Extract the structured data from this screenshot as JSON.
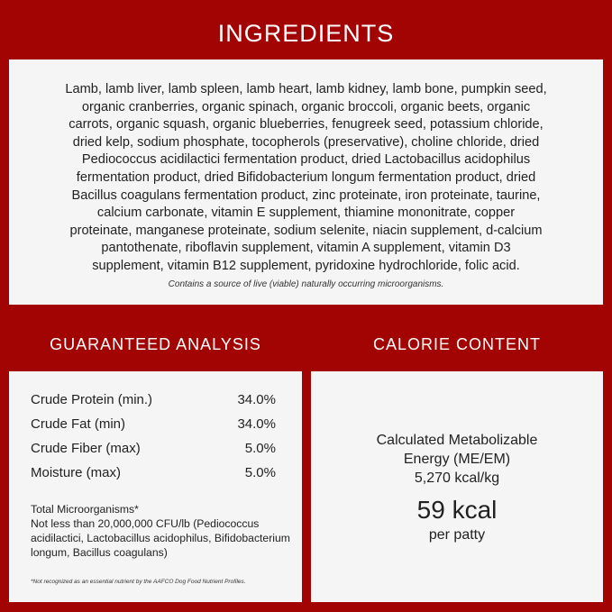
{
  "ingredients": {
    "title": "INGREDIENTS",
    "lines": [
      "Lamb, lamb liver, lamb spleen, lamb heart, lamb kidney, lamb bone, pumpkin seed,",
      "organic cranberries, organic spinach, organic broccoli, organic beets, organic",
      "carrots, organic squash, organic blueberries, fenugreek seed, potassium chloride,",
      "dried kelp, sodium phosphate, tocopherols (preservative), choline chloride, dried",
      "Pediococcus acidilactici fermentation product, dried Lactobacillus acidophilus",
      "fermentation product, dried Bifidobacterium longum fermentation product, dried",
      "Bacillus coagulans fermentation product, zinc proteinate, iron proteinate, taurine,",
      "calcium carbonate, vitamin E supplement, thiamine mononitrate, copper",
      "proteinate, manganese proteinate, sodium selenite, niacin supplement, d-calcium",
      "pantothenate, riboflavin supplement, vitamin A supplement, vitamin D3",
      "supplement, vitamin B12 supplement, pyridoxine hydrochloride, folic acid."
    ],
    "note": "Contains a source of live (viable) naturally occurring microorganisms."
  },
  "analysis": {
    "title": "GUARANTEED ANALYSIS",
    "rows": [
      {
        "label": "Crude Protein (min.)",
        "value": "34.0%"
      },
      {
        "label": "Crude Fat (min)",
        "value": "34.0%"
      },
      {
        "label": "Crude Fiber (max)",
        "value": "5.0%"
      },
      {
        "label": "Moisture (max)",
        "value": "5.0%"
      }
    ],
    "micro_title": "Total Microorganisms*",
    "micro_text": "Not less than 20,000,000 CFU/lb (Pediococcus acidilactici, Lactobacillus acidophilus, Bifidobacterium longum, Bacillus coagulans)",
    "footnote": "*Not recognized as an essential nutrient by the AAFCO Dog Food Nutrient Profiles."
  },
  "calorie": {
    "title": "CALORIE CONTENT",
    "line1": "Calculated Metabolizable",
    "line2": "Energy (ME/EM)",
    "line3": "5,270 kcal/kg",
    "big": "59 kcal",
    "per": "per patty"
  },
  "colors": {
    "background": "#a10403",
    "panel": "#f5f5f5"
  }
}
